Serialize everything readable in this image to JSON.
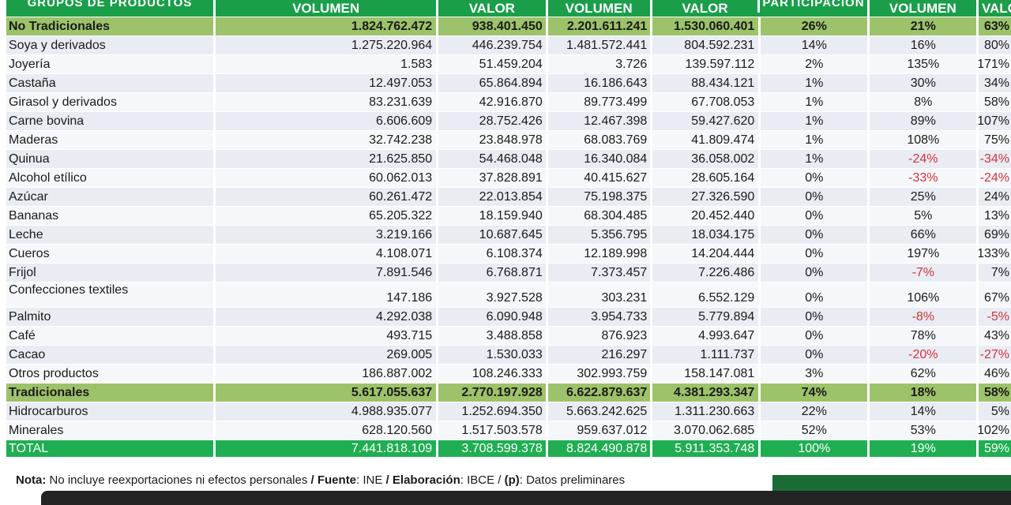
{
  "header": {
    "group": "GRUPOS DE PRODUCTOS",
    "vol1": "VOLUMEN",
    "val1": "VALOR",
    "vol2": "VOLUMEN",
    "val2": "VALOR",
    "part": "PARTICIPACIÓN",
    "var_vol": "VOLUMEN",
    "var_val": "VALOR"
  },
  "no_tradicionales": {
    "name": "No Tradicionales",
    "vol1": "1.824.762.472",
    "val1": "938.401.450",
    "vol2": "2.201.611.241",
    "val2": "1.530.060.401",
    "part": "26%",
    "var_vol": "21%",
    "var_val": "63%"
  },
  "items_nt": [
    {
      "name": "Soya y derivados",
      "vol1": "1.275.220.964",
      "val1": "446.239.754",
      "vol2": "1.481.572.441",
      "val2": "804.592.231",
      "part": "14%",
      "var_vol": "16%",
      "var_val": "80%"
    },
    {
      "name": "Joyería",
      "vol1": "1.583",
      "val1": "51.459.204",
      "vol2": "3.726",
      "val2": "139.597.112",
      "part": "2%",
      "var_vol": "135%",
      "var_val": "171%"
    },
    {
      "name": "Castaña",
      "vol1": "12.497.053",
      "val1": "65.864.894",
      "vol2": "16.186.643",
      "val2": "88.434.121",
      "part": "1%",
      "var_vol": "30%",
      "var_val": "34%"
    },
    {
      "name": "Girasol y derivados",
      "vol1": "83.231.639",
      "val1": "42.916.870",
      "vol2": "89.773.499",
      "val2": "67.708.053",
      "part": "1%",
      "var_vol": "8%",
      "var_val": "58%"
    },
    {
      "name": "Carne bovina",
      "vol1": "6.606.609",
      "val1": "28.752.426",
      "vol2": "12.467.398",
      "val2": "59.427.620",
      "part": "1%",
      "var_vol": "89%",
      "var_val": "107%"
    },
    {
      "name": "Maderas",
      "vol1": "32.742.238",
      "val1": "23.848.978",
      "vol2": "68.083.769",
      "val2": "41.809.474",
      "part": "1%",
      "var_vol": "108%",
      "var_val": "75%"
    },
    {
      "name": "Quinua",
      "vol1": "21.625.850",
      "val1": "54.468.048",
      "vol2": "16.340.084",
      "val2": "36.058.002",
      "part": "1%",
      "var_vol": "-24%",
      "var_val": "-34%"
    },
    {
      "name": "Alcohol etílico",
      "vol1": "60.062.013",
      "val1": "37.828.891",
      "vol2": "40.415.627",
      "val2": "28.605.164",
      "part": "0%",
      "var_vol": "-33%",
      "var_val": "-24%"
    },
    {
      "name": "Azúcar",
      "vol1": "60.261.472",
      "val1": "22.013.854",
      "vol2": "75.198.375",
      "val2": "27.326.590",
      "part": "0%",
      "var_vol": "25%",
      "var_val": "24%"
    },
    {
      "name": "Bananas",
      "vol1": "65.205.322",
      "val1": "18.159.940",
      "vol2": "68.304.485",
      "val2": "20.452.440",
      "part": "0%",
      "var_vol": "5%",
      "var_val": "13%"
    },
    {
      "name": "Leche",
      "vol1": "3.219.166",
      "val1": "10.687.645",
      "vol2": "5.356.795",
      "val2": "18.034.175",
      "part": "0%",
      "var_vol": "66%",
      "var_val": "69%"
    },
    {
      "name": "Cueros",
      "vol1": "4.108.071",
      "val1": "6.108.374",
      "vol2": "12.189.998",
      "val2": "14.204.444",
      "part": "0%",
      "var_vol": "197%",
      "var_val": "133%"
    },
    {
      "name": "Frijol",
      "vol1": "7.891.546",
      "val1": "6.768.871",
      "vol2": "7.373.457",
      "val2": "7.226.486",
      "part": "0%",
      "var_vol": "-7%",
      "var_val": "7%"
    },
    {
      "name": "Confecciones textiles",
      "vol1": "147.186",
      "val1": "3.927.528",
      "vol2": "303.231",
      "val2": "6.552.129",
      "part": "0%",
      "var_vol": "106%",
      "var_val": "67%"
    },
    {
      "name": "Palmito",
      "vol1": "4.292.038",
      "val1": "6.090.948",
      "vol2": "3.954.733",
      "val2": "5.779.894",
      "part": "0%",
      "var_vol": "-8%",
      "var_val": "-5%"
    },
    {
      "name": "Café",
      "vol1": "493.715",
      "val1": "3.488.858",
      "vol2": "876.923",
      "val2": "4.993.647",
      "part": "0%",
      "var_vol": "78%",
      "var_val": "43%"
    },
    {
      "name": "Cacao",
      "vol1": "269.005",
      "val1": "1.530.033",
      "vol2": "216.297",
      "val2": "1.111.737",
      "part": "0%",
      "var_vol": "-20%",
      "var_val": "-27%"
    },
    {
      "name": "Otros productos",
      "vol1": "186.887.002",
      "val1": "108.246.333",
      "vol2": "302.993.759",
      "val2": "158.147.081",
      "part": "3%",
      "var_vol": "62%",
      "var_val": "46%"
    }
  ],
  "tradicionales": {
    "name": "Tradicionales",
    "vol1": "5.617.055.637",
    "val1": "2.770.197.928",
    "vol2": "6.622.879.637",
    "val2": "4.381.293.347",
    "part": "74%",
    "var_vol": "18%",
    "var_val": "58%"
  },
  "items_t": [
    {
      "name": "Hidrocarburos",
      "vol1": "4.988.935.077",
      "val1": "1.252.694.350",
      "vol2": "5.663.242.625",
      "val2": "1.311.230.663",
      "part": "22%",
      "var_vol": "14%",
      "var_val": "5%"
    },
    {
      "name": "Minerales",
      "vol1": "628.120.560",
      "val1": "1.517.503.578",
      "vol2": "959.637.012",
      "val2": "3.070.062.685",
      "part": "52%",
      "var_vol": "53%",
      "var_val": "102%"
    }
  ],
  "total": {
    "name": "TOTAL",
    "vol1": "7.441.818.109",
    "val1": "3.708.599.378",
    "vol2": "8.824.490.878",
    "val2": "5.911.353.748",
    "part": "100%",
    "var_vol": "19%",
    "var_val": "59%"
  },
  "note": {
    "nota_label": "Nota:",
    "nota_text": " No incluye reexportaciones ni efectos personales ",
    "sep1": "/ ",
    "fuente_label": "Fuente",
    "fuente_text": ": INE ",
    "sep2": "/ ",
    "elab_label": "Elaboración",
    "elab_text": ": IBCE / ",
    "p_label": "(p)",
    "p_text": ": Datos preliminares"
  },
  "colors": {
    "header_green": "#1a9e4a",
    "group_green": "#9dc36a",
    "total_green": "#1fae52",
    "negative_red": "#d3323a"
  }
}
